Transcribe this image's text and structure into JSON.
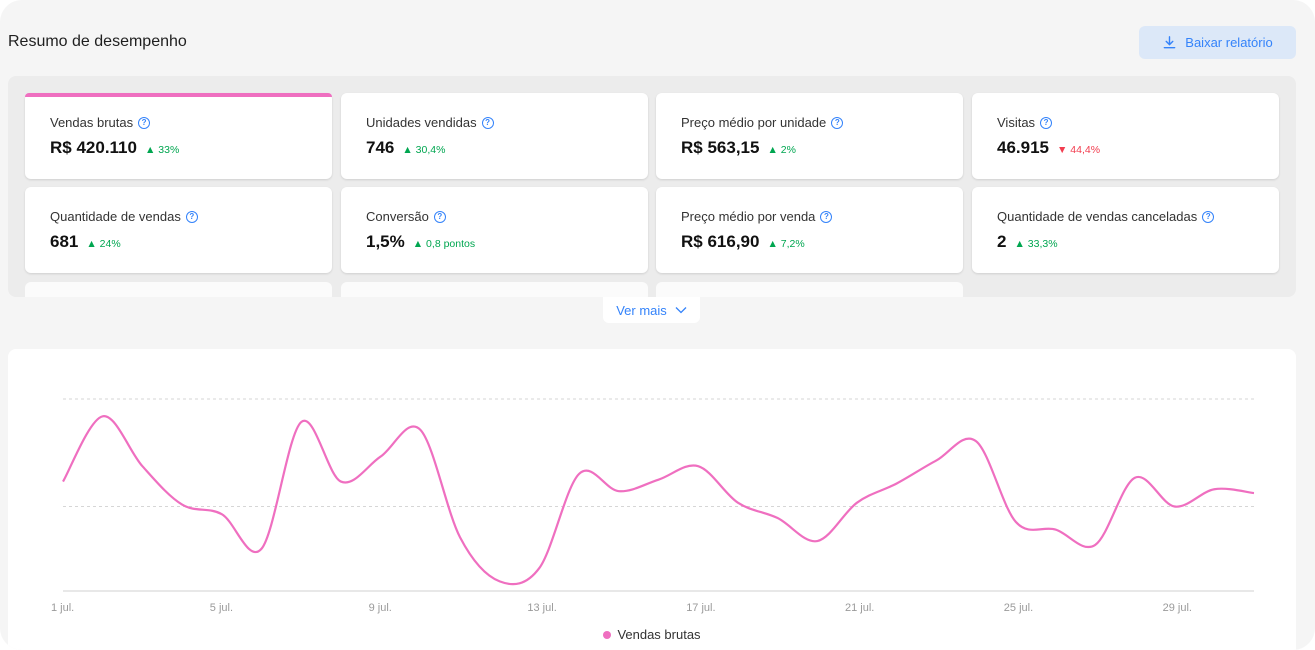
{
  "header": {
    "title": "Resumo de desempenho",
    "download_label": "Baixar relatório"
  },
  "metrics": [
    {
      "label": "Vendas brutas",
      "value": "R$ 420.110",
      "delta": "▲ 33%",
      "trend": "up",
      "active": true
    },
    {
      "label": "Unidades vendidas",
      "value": "746",
      "delta": "▲ 30,4%",
      "trend": "up"
    },
    {
      "label": "Preço médio por unidade",
      "value": "R$ 563,15",
      "delta": "▲ 2%",
      "trend": "up"
    },
    {
      "label": "Visitas",
      "value": "46.915",
      "delta": "▼ 44,4%",
      "trend": "down"
    },
    {
      "label": "Quantidade de vendas",
      "value": "681",
      "delta": "▲ 24%",
      "trend": "up"
    },
    {
      "label": "Conversão",
      "value": "1,5%",
      "delta": "▲ 0,8 pontos",
      "trend": "up"
    },
    {
      "label": "Preço médio por venda",
      "value": "R$ 616,90",
      "delta": "▲ 7,2%",
      "trend": "up"
    },
    {
      "label": "Quantidade de vendas canceladas",
      "value": "2",
      "delta": "▲ 33,3%",
      "trend": "up"
    }
  ],
  "see_more_label": "Ver mais",
  "colors": {
    "accent": "#3483fa",
    "series": "#ef6fc0",
    "up": "#00a650",
    "down": "#f23d4f"
  },
  "chart_data": {
    "type": "line",
    "x": [
      1,
      2,
      3,
      4,
      5,
      6,
      7,
      8,
      9,
      10,
      11,
      12,
      13,
      14,
      15,
      16,
      17,
      18,
      19,
      20,
      21,
      22,
      23,
      24,
      25,
      26,
      27,
      28,
      29,
      30,
      31
    ],
    "xticks": [
      {
        "x": 1,
        "label": "1 jul."
      },
      {
        "x": 5,
        "label": "5 jul."
      },
      {
        "x": 9,
        "label": "9 jul."
      },
      {
        "x": 13,
        "label": "13 jul."
      },
      {
        "x": 17,
        "label": "17 jul."
      },
      {
        "x": 21,
        "label": "21 jul."
      },
      {
        "x": 25,
        "label": "25 jul."
      },
      {
        "x": 29,
        "label": "29 jul."
      }
    ],
    "series": [
      {
        "name": "Vendas brutas",
        "values": [
          0.57,
          0.91,
          0.65,
          0.45,
          0.4,
          0.22,
          0.88,
          0.57,
          0.7,
          0.84,
          0.28,
          0.05,
          0.12,
          0.61,
          0.52,
          0.58,
          0.65,
          0.46,
          0.38,
          0.26,
          0.46,
          0.56,
          0.68,
          0.78,
          0.36,
          0.32,
          0.24,
          0.59,
          0.44,
          0.53,
          0.51
        ]
      }
    ],
    "ylim": [
      0,
      1
    ],
    "grid": true,
    "legend": "bottom-center"
  }
}
